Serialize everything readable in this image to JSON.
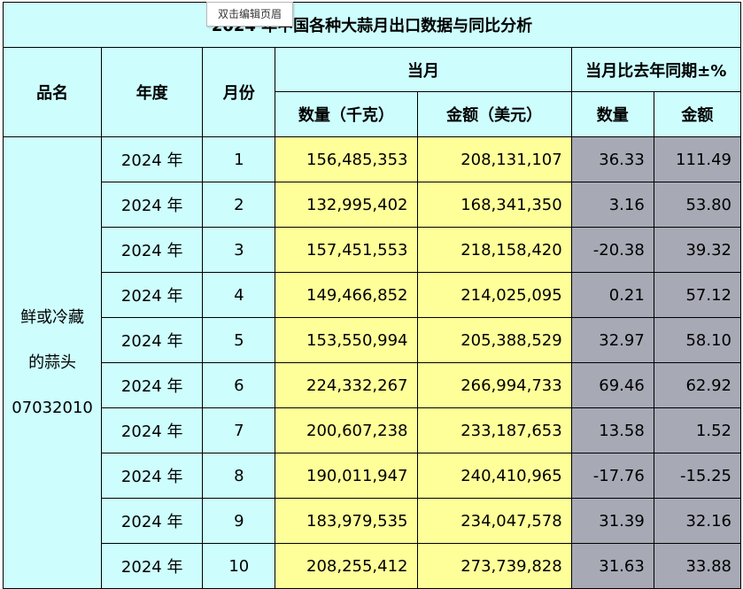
{
  "header_tooltip": "双击编辑页眉",
  "table": {
    "title": "2024 年中国各种大蒜月出口数据与同比分析",
    "headers": {
      "product": "品名",
      "year": "年度",
      "month": "月份",
      "current_month": "当月",
      "yoy": "当月比去年同期±%",
      "quantity_kg": "数量（千克）",
      "amount_usd": "金额（美元）",
      "yoy_quantity": "数量",
      "yoy_amount": "金额"
    },
    "product_lines": [
      "鲜或冷藏",
      "的蒜头",
      "07032010"
    ],
    "rows": [
      {
        "year": "2024 年",
        "month": "1",
        "quantity": "156,485,353",
        "amount": "208,131,107",
        "yoy_quantity": "36.33",
        "yoy_amount": "111.49"
      },
      {
        "year": "2024 年",
        "month": "2",
        "quantity": "132,995,402",
        "amount": "168,341,350",
        "yoy_quantity": "3.16",
        "yoy_amount": "53.80"
      },
      {
        "year": "2024 年",
        "month": "3",
        "quantity": "157,451,553",
        "amount": "218,158,420",
        "yoy_quantity": "-20.38",
        "yoy_amount": "39.32"
      },
      {
        "year": "2024 年",
        "month": "4",
        "quantity": "149,466,852",
        "amount": "214,025,095",
        "yoy_quantity": "0.21",
        "yoy_amount": "57.12"
      },
      {
        "year": "2024 年",
        "month": "5",
        "quantity": "153,550,994",
        "amount": "205,388,529",
        "yoy_quantity": "32.97",
        "yoy_amount": "58.10"
      },
      {
        "year": "2024 年",
        "month": "6",
        "quantity": "224,332,267",
        "amount": "266,994,733",
        "yoy_quantity": "69.46",
        "yoy_amount": "62.92"
      },
      {
        "year": "2024 年",
        "month": "7",
        "quantity": "200,607,238",
        "amount": "233,187,653",
        "yoy_quantity": "13.58",
        "yoy_amount": "1.52"
      },
      {
        "year": "2024 年",
        "month": "8",
        "quantity": "190,011,947",
        "amount": "240,410,965",
        "yoy_quantity": "-17.76",
        "yoy_amount": "-15.25"
      },
      {
        "year": "2024 年",
        "month": "9",
        "quantity": "183,979,535",
        "amount": "234,047,578",
        "yoy_quantity": "31.39",
        "yoy_amount": "32.16"
      },
      {
        "year": "2024 年",
        "month": "10",
        "quantity": "208,255,412",
        "amount": "273,739,828",
        "yoy_quantity": "31.63",
        "yoy_amount": "33.88"
      }
    ]
  }
}
